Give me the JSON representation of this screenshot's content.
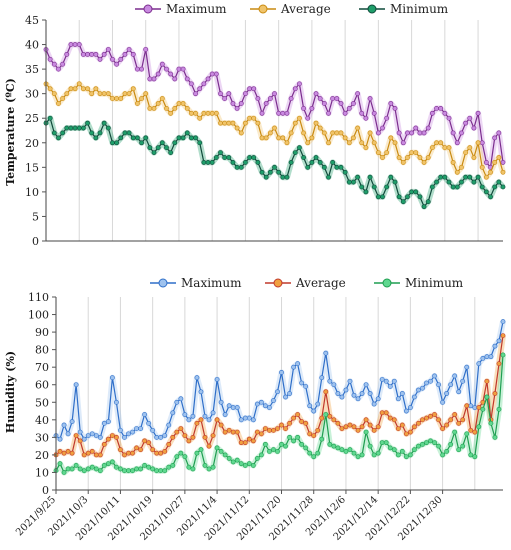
{
  "chart_data": [
    {
      "type": "line",
      "ylabel": "Temperature (ºC)",
      "ylim": [
        0,
        45
      ],
      "yticks": [
        0,
        5,
        10,
        15,
        20,
        25,
        30,
        35,
        40,
        45
      ],
      "grid": "vertical",
      "legend_position": "top",
      "x_start": "2021/9/25",
      "x_end": "2021/12/31",
      "series": [
        {
          "name": "Maximum",
          "color": "#7b2d8e",
          "fill": "#c98ae0",
          "values": [
            39,
            37,
            36,
            35,
            36,
            38,
            40,
            40,
            40,
            38,
            38,
            38,
            38,
            37,
            38,
            39,
            37,
            36,
            37,
            38,
            39,
            38,
            35,
            35,
            39,
            33,
            33,
            34,
            36,
            35,
            34,
            33,
            35,
            35,
            33,
            32,
            30,
            31,
            32,
            33,
            34,
            34,
            30,
            29,
            30,
            28,
            27,
            28,
            30,
            31,
            31,
            29,
            26,
            28,
            29,
            30,
            26,
            26,
            26,
            29,
            31,
            32,
            27,
            25,
            27,
            30,
            29,
            28,
            26,
            29,
            29,
            28,
            26,
            27,
            28,
            30,
            26,
            25,
            29,
            26,
            22,
            23,
            25,
            28,
            27,
            22,
            20,
            22,
            22,
            23,
            22,
            22,
            23,
            26,
            27,
            27,
            26,
            25,
            22,
            20,
            22,
            24,
            25,
            23,
            26,
            20,
            16,
            15,
            21,
            22,
            16
          ]
        },
        {
          "name": "Average",
          "color": "#c98a10",
          "fill": "#f0c46a",
          "values": [
            32,
            31,
            30,
            28,
            29,
            30,
            31,
            31,
            32,
            31,
            31,
            30,
            31,
            30,
            30,
            30,
            29,
            29,
            29,
            30,
            30,
            31,
            28,
            29,
            30,
            27,
            27,
            28,
            29,
            27,
            26,
            27,
            28,
            28,
            27,
            26,
            26,
            25,
            26,
            26,
            26,
            26,
            24,
            24,
            24,
            24,
            23,
            22,
            24,
            25,
            25,
            24,
            21,
            21,
            22,
            23,
            21,
            21,
            20,
            22,
            24,
            25,
            22,
            20,
            21,
            24,
            23,
            22,
            20,
            22,
            22,
            22,
            21,
            20,
            21,
            23,
            20,
            19,
            22,
            20,
            18,
            17,
            18,
            21,
            20,
            17,
            16,
            17,
            18,
            18,
            17,
            16,
            17,
            19,
            20,
            20,
            19,
            19,
            16,
            14,
            15,
            18,
            19,
            17,
            20,
            15,
            13,
            14,
            16,
            17,
            14
          ]
        },
        {
          "name": "Minimum",
          "color": "#0f4a3a",
          "fill": "#1f9e6a",
          "values": [
            24,
            25,
            22,
            21,
            22,
            23,
            23,
            23,
            23,
            23,
            24,
            22,
            21,
            22,
            24,
            23,
            20,
            20,
            21,
            22,
            22,
            21,
            21,
            20,
            21,
            19,
            18,
            19,
            20,
            19,
            18,
            20,
            21,
            21,
            22,
            21,
            21,
            20,
            16,
            16,
            16,
            17,
            18,
            17,
            17,
            16,
            15,
            15,
            16,
            17,
            17,
            16,
            14,
            13,
            14,
            15,
            14,
            13,
            13,
            16,
            18,
            19,
            17,
            15,
            16,
            17,
            16,
            15,
            13,
            16,
            15,
            15,
            14,
            12,
            12,
            13,
            11,
            10,
            13,
            11,
            9,
            9,
            11,
            13,
            12,
            9,
            8,
            9,
            10,
            10,
            9,
            7,
            8,
            11,
            12,
            13,
            13,
            12,
            11,
            11,
            12,
            13,
            13,
            12,
            13,
            11,
            10,
            9,
            11,
            12,
            11
          ]
        }
      ]
    },
    {
      "type": "line",
      "ylabel": "Humidity (%)",
      "ylim": [
        0,
        110
      ],
      "yticks": [
        0,
        10,
        20,
        30,
        40,
        50,
        60,
        70,
        80,
        90,
        100,
        110
      ],
      "grid": "vertical",
      "legend_position": "top",
      "x_ticks": [
        "2021/9/25",
        "2021/10/3",
        "2021/10/11",
        "2021/10/19",
        "2021/10/27",
        "2021/11/4",
        "2021/11/12",
        "2021/11/20",
        "2021/11/28",
        "2021/12/6",
        "2021/12/14",
        "2021/12/22",
        "2021/12/30"
      ],
      "series": [
        {
          "name": "Maximum",
          "color": "#2f6fc9",
          "fill": "#9ec2ee",
          "values": [
            31,
            29,
            37,
            32,
            39,
            60,
            33,
            29,
            31,
            32,
            31,
            30,
            38,
            39,
            64,
            50,
            34,
            30,
            32,
            33,
            35,
            35,
            43,
            38,
            34,
            30,
            30,
            31,
            37,
            44,
            50,
            52,
            43,
            40,
            42,
            64,
            56,
            42,
            40,
            44,
            63,
            50,
            43,
            48,
            47,
            47,
            40,
            41,
            41,
            40,
            49,
            50,
            48,
            47,
            51,
            56,
            67,
            53,
            55,
            70,
            72,
            61,
            59,
            48,
            45,
            49,
            64,
            78,
            62,
            60,
            55,
            53,
            57,
            62,
            54,
            52,
            55,
            60,
            55,
            49,
            52,
            63,
            62,
            59,
            62,
            52,
            55,
            45,
            47,
            53,
            57,
            58,
            61,
            62,
            65,
            60,
            50,
            55,
            60,
            65,
            56,
            62,
            70,
            48,
            47,
            72,
            75,
            76,
            76,
            82,
            85,
            96
          ]
        },
        {
          "name": "Average",
          "color": "#c0392b",
          "fill": "#f0a040",
          "values": [
            20,
            22,
            21,
            22,
            21,
            31,
            28,
            20,
            21,
            22,
            20,
            20,
            26,
            29,
            31,
            30,
            23,
            20,
            21,
            21,
            24,
            23,
            28,
            27,
            23,
            21,
            21,
            22,
            26,
            30,
            33,
            35,
            31,
            28,
            30,
            38,
            40,
            30,
            25,
            31,
            40,
            37,
            33,
            34,
            33,
            33,
            27,
            27,
            29,
            28,
            33,
            32,
            35,
            34,
            34,
            35,
            37,
            35,
            38,
            41,
            43,
            39,
            38,
            32,
            31,
            34,
            41,
            56,
            42,
            40,
            38,
            35,
            36,
            37,
            36,
            34,
            36,
            40,
            37,
            34,
            36,
            44,
            44,
            41,
            40,
            35,
            37,
            32,
            33,
            36,
            38,
            40,
            41,
            42,
            43,
            40,
            35,
            37,
            40,
            43,
            38,
            40,
            48,
            34,
            33,
            47,
            50,
            62,
            40,
            55,
            72,
            88
          ]
        },
        {
          "name": "Minimum",
          "color": "#1e9e50",
          "fill": "#60d890",
          "values": [
            11,
            15,
            10,
            12,
            12,
            14,
            12,
            11,
            12,
            13,
            12,
            11,
            14,
            15,
            16,
            13,
            12,
            11,
            11,
            11,
            12,
            12,
            14,
            13,
            12,
            11,
            11,
            11,
            13,
            14,
            19,
            21,
            19,
            13,
            12,
            21,
            23,
            14,
            12,
            13,
            24,
            22,
            20,
            18,
            16,
            17,
            15,
            14,
            15,
            14,
            18,
            20,
            26,
            22,
            23,
            22,
            26,
            25,
            30,
            28,
            30,
            26,
            24,
            21,
            19,
            21,
            29,
            43,
            26,
            25,
            24,
            23,
            22,
            23,
            21,
            19,
            20,
            33,
            25,
            20,
            21,
            27,
            27,
            24,
            23,
            20,
            22,
            19,
            20,
            23,
            25,
            26,
            27,
            28,
            27,
            25,
            20,
            22,
            26,
            33,
            23,
            25,
            32,
            20,
            19,
            36,
            46,
            53,
            38,
            30,
            46,
            77
          ]
        }
      ]
    }
  ]
}
